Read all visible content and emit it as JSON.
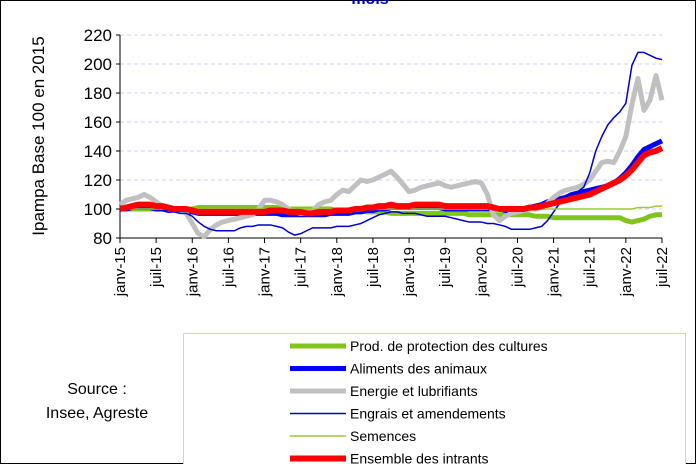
{
  "chart_data": {
    "type": "line",
    "title": "mois",
    "y_label": "Ipampa Base 100 en 2015",
    "source": [
      "Source :",
      "Insee, Agreste"
    ],
    "categories": [
      "janv-15",
      null,
      null,
      null,
      null,
      null,
      "juil-15",
      null,
      null,
      null,
      null,
      null,
      "janv-16",
      null,
      null,
      null,
      null,
      null,
      "juil-16",
      null,
      null,
      null,
      null,
      null,
      "janv-17",
      null,
      null,
      null,
      null,
      null,
      "juil-17",
      null,
      null,
      null,
      null,
      null,
      "janv-18",
      null,
      null,
      null,
      null,
      null,
      "juil-18",
      null,
      null,
      null,
      null,
      null,
      "janv-19",
      null,
      null,
      null,
      null,
      null,
      "juil-19",
      null,
      null,
      null,
      null,
      null,
      "janv-20",
      null,
      null,
      null,
      null,
      null,
      "juil-20",
      null,
      null,
      null,
      null,
      null,
      "janv-21",
      null,
      null,
      null,
      null,
      null,
      "juil-21",
      null,
      null,
      null,
      null,
      null,
      "janv-22",
      null,
      null,
      null,
      null,
      null,
      "juil-22"
    ],
    "ylim": [
      80,
      220
    ],
    "yticks": [
      80,
      100,
      120,
      140,
      160,
      180,
      200,
      220
    ],
    "grid": true,
    "series": [
      {
        "name": "Prod. de protection des cultures",
        "color": "#80c41c",
        "linewidth": 5,
        "values": [
          100,
          100,
          100,
          100,
          100,
          100,
          100,
          100,
          100,
          100,
          100,
          100,
          100,
          101,
          101,
          101,
          101,
          101,
          101,
          101,
          101,
          101,
          101,
          101,
          101,
          101,
          101,
          100,
          100,
          100,
          100,
          100,
          100,
          100,
          100,
          100,
          99,
          99,
          99,
          99,
          99,
          98,
          98,
          98,
          98,
          97,
          97,
          97,
          97,
          97,
          97,
          97,
          97,
          97,
          97,
          97,
          97,
          97,
          96,
          96,
          96,
          96,
          96,
          96,
          96,
          96,
          96,
          96,
          96,
          95,
          95,
          95,
          94,
          94,
          94,
          94,
          94,
          94,
          94,
          94,
          94,
          94,
          94,
          94,
          92,
          91,
          92,
          93,
          95,
          96,
          96
        ]
      },
      {
        "name": "Aliments des animaux",
        "color": "#0000ff",
        "linewidth": 5,
        "values": [
          100,
          100,
          101,
          101,
          101,
          101,
          100,
          100,
          99,
          99,
          99,
          98,
          98,
          97,
          97,
          97,
          97,
          97,
          97,
          97,
          97,
          97,
          97,
          97,
          97,
          97,
          97,
          96,
          96,
          96,
          96,
          96,
          96,
          96,
          96,
          97,
          97,
          97,
          97,
          98,
          98,
          99,
          99,
          100,
          100,
          101,
          101,
          101,
          101,
          101,
          101,
          101,
          101,
          101,
          100,
          100,
          100,
          100,
          100,
          100,
          100,
          100,
          100,
          100,
          99,
          99,
          99,
          100,
          101,
          102,
          103,
          105,
          106,
          107,
          108,
          110,
          111,
          112,
          113,
          114,
          115,
          116,
          118,
          121,
          125,
          130,
          136,
          141,
          143,
          145,
          147
        ]
      },
      {
        "name": "Energie et lubrifiants",
        "color": "#c0c0c0",
        "linewidth": 5,
        "values": [
          103,
          106,
          107,
          108,
          110,
          108,
          105,
          102,
          100,
          99,
          99,
          97,
          90,
          83,
          81,
          86,
          89,
          91,
          92,
          93,
          94,
          95,
          96,
          100,
          106,
          106,
          105,
          103,
          100,
          98,
          97,
          97,
          99,
          103,
          105,
          106,
          110,
          113,
          112,
          116,
          120,
          119,
          120,
          122,
          124,
          126,
          122,
          117,
          112,
          113,
          115,
          116,
          117,
          118,
          116,
          115,
          116,
          117,
          118,
          119,
          118,
          110,
          96,
          92,
          95,
          97,
          98,
          99,
          100,
          100,
          101,
          104,
          108,
          111,
          113,
          114,
          115,
          117,
          120,
          126,
          132,
          133,
          132,
          140,
          150,
          172,
          190,
          168,
          175,
          192,
          175
        ]
      },
      {
        "name": "Engrais et amendements",
        "color": "#0000cc",
        "linewidth": 1.5,
        "values": [
          100,
          100,
          100,
          100,
          100,
          100,
          100,
          99,
          99,
          98,
          97,
          97,
          95,
          91,
          88,
          86,
          85,
          85,
          85,
          85,
          87,
          88,
          88,
          89,
          89,
          89,
          88,
          87,
          84,
          82,
          83,
          85,
          87,
          87,
          87,
          87,
          88,
          88,
          88,
          89,
          90,
          92,
          94,
          96,
          97,
          98,
          98,
          97,
          97,
          97,
          96,
          95,
          95,
          95,
          95,
          94,
          93,
          92,
          91,
          91,
          91,
          90,
          90,
          89,
          88,
          86,
          86,
          86,
          86,
          87,
          88,
          92,
          98,
          104,
          108,
          110,
          112,
          115,
          125,
          140,
          150,
          158,
          163,
          167,
          173,
          199,
          208,
          208,
          206,
          204,
          203
        ]
      },
      {
        "name": "Semences",
        "color": "#99cc33",
        "linewidth": 1.5,
        "values": [
          100,
          100,
          100,
          100,
          100,
          100,
          100,
          100,
          100,
          100,
          100,
          100,
          100,
          100,
          100,
          100,
          100,
          100,
          100,
          100,
          100,
          100,
          100,
          100,
          100,
          100,
          100,
          100,
          100,
          100,
          100,
          100,
          100,
          100,
          100,
          100,
          100,
          100,
          100,
          100,
          100,
          100,
          100,
          100,
          100,
          100,
          100,
          100,
          100,
          100,
          100,
          100,
          100,
          100,
          100,
          100,
          100,
          100,
          100,
          100,
          100,
          100,
          100,
          100,
          100,
          100,
          100,
          100,
          100,
          100,
          100,
          100,
          100,
          100,
          100,
          100,
          100,
          100,
          100,
          100,
          100,
          100,
          100,
          100,
          100,
          100,
          101,
          101,
          101,
          102,
          102
        ]
      },
      {
        "name": "Ensemble des intrants",
        "color": "#ff0000",
        "linewidth": 6,
        "values": [
          100,
          101,
          102,
          103,
          103,
          103,
          102,
          102,
          101,
          100,
          100,
          100,
          99,
          98,
          98,
          98,
          98,
          98,
          98,
          98,
          98,
          98,
          98,
          98,
          98,
          99,
          99,
          99,
          98,
          98,
          98,
          97,
          97,
          98,
          98,
          98,
          99,
          99,
          99,
          100,
          100,
          101,
          101,
          102,
          102,
          103,
          102,
          102,
          102,
          103,
          103,
          103,
          103,
          103,
          102,
          102,
          102,
          102,
          102,
          102,
          102,
          102,
          101,
          100,
          100,
          100,
          100,
          100,
          101,
          101,
          102,
          103,
          104,
          105,
          106,
          107,
          108,
          109,
          110,
          112,
          114,
          116,
          118,
          120,
          123,
          127,
          132,
          137,
          139,
          140,
          142
        ]
      }
    ]
  }
}
